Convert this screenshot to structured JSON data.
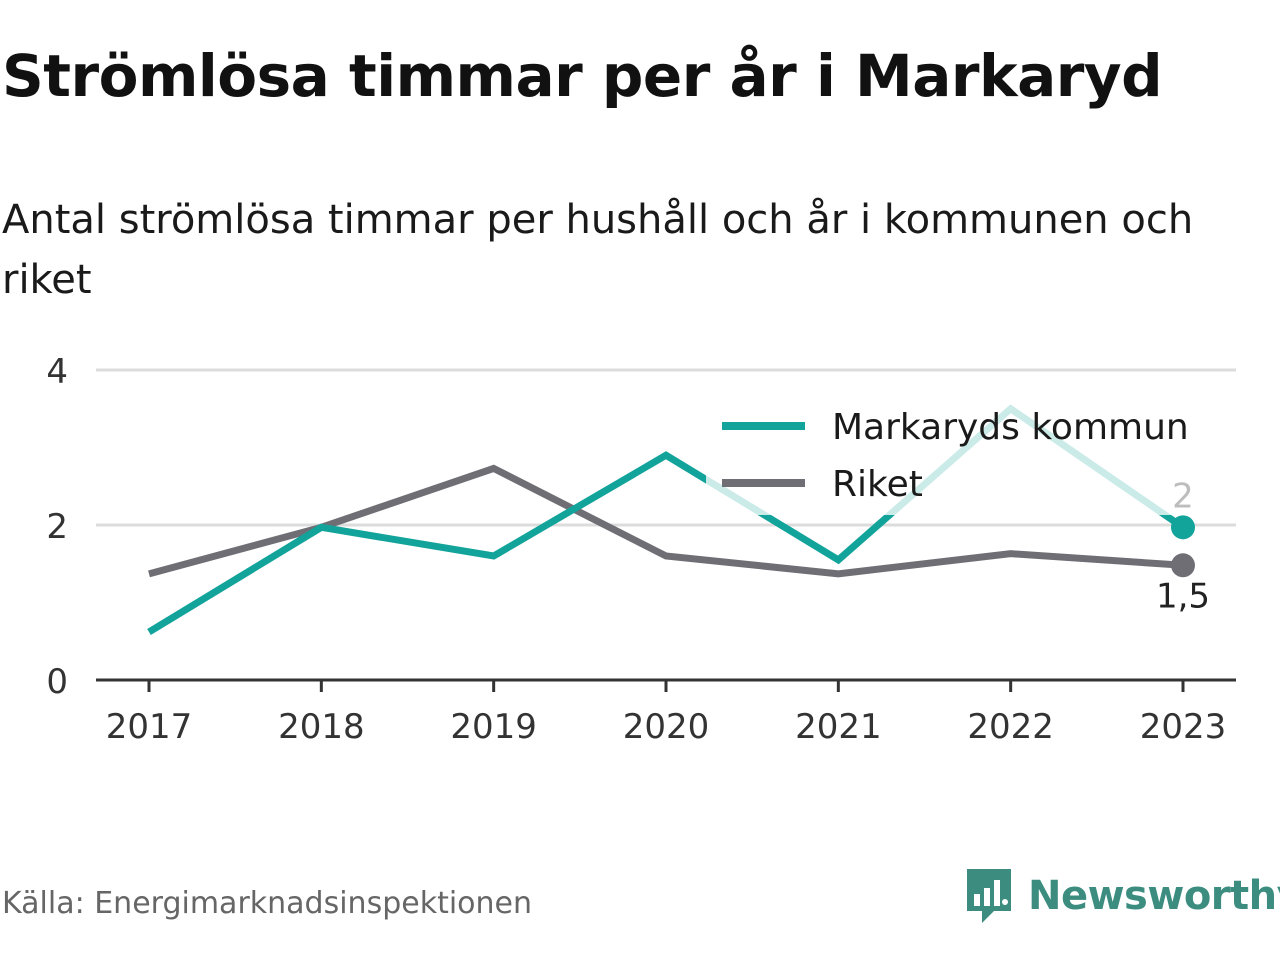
{
  "header": {
    "title": "Strömlösa timmar per år i Markaryd",
    "subtitle": "Antal strömlösa timmar per hushåll och år i kommunen och riket"
  },
  "footer": {
    "source": "Källa: Energimarknadsinspektionen",
    "brand": "Newsworthy",
    "brand_icon": "newsworthy-logo-icon"
  },
  "chart_data": {
    "type": "line",
    "x": [
      "2017",
      "2018",
      "2019",
      "2020",
      "2021",
      "2022",
      "2023"
    ],
    "ylim": [
      0,
      4
    ],
    "yticks": [
      "0",
      "2",
      "4"
    ],
    "grid": true,
    "legend": "top-right",
    "series": [
      {
        "name": "Markaryds kommun",
        "color": "#12a39a",
        "values": [
          0.62,
          1.97,
          1.6,
          2.9,
          1.55,
          3.5,
          1.97
        ],
        "end_label": "2"
      },
      {
        "name": "Riket",
        "color": "#6f6e75",
        "values": [
          1.37,
          1.97,
          2.73,
          1.6,
          1.37,
          1.63,
          1.48
        ],
        "end_label": "1,5"
      }
    ]
  }
}
